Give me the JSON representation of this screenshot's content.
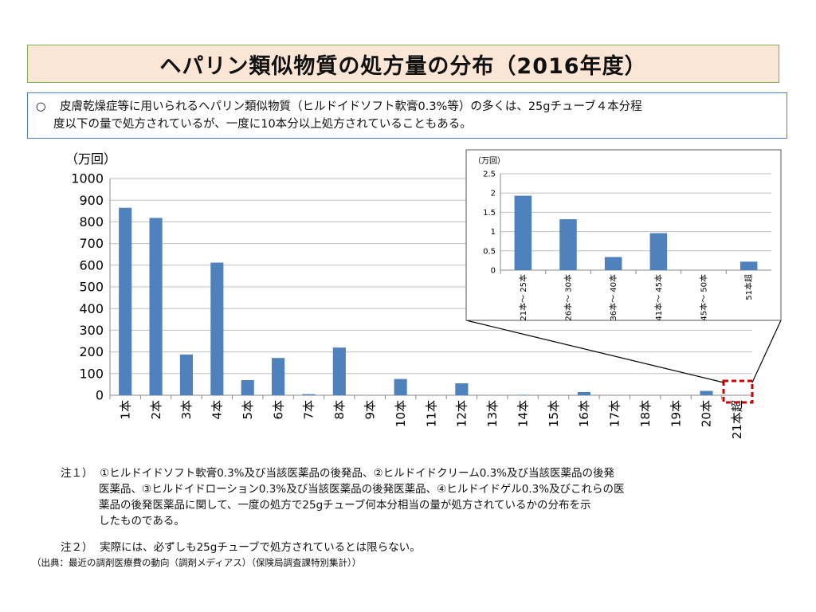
{
  "title": "ヘパリン類似物質の処方量の分布（2016年度）",
  "summary": {
    "bullet": "○",
    "line1": "皮膚乾燥症等に用いられるヘパリン類似物質（ヒルドイドソフト軟膏0.3%等）の多くは、25gチューブ４本分程",
    "line2": "度以下の量で処方されているが、一度に10本分以上処方されていることもある。"
  },
  "chart_data": [
    {
      "type": "bar",
      "unit_label": "（万回）",
      "categories": [
        "1本",
        "2本",
        "3本",
        "4本",
        "5本",
        "6本",
        "7本",
        "8本",
        "9本",
        "10本",
        "11本",
        "12本",
        "13本",
        "14本",
        "15本",
        "16本",
        "17本",
        "18本",
        "19本",
        "20本",
        "21本超"
      ],
      "values": [
        865,
        818,
        188,
        612,
        70,
        172,
        5,
        220,
        0,
        75,
        0,
        55,
        0,
        2,
        0,
        15,
        0,
        0,
        0,
        20,
        0
      ],
      "ylim": [
        0,
        1000
      ],
      "yticks": [
        "0",
        "100",
        "200",
        "300",
        "400",
        "500",
        "600",
        "700",
        "800",
        "900",
        "1000"
      ],
      "grid": true,
      "color": "#4f81bd"
    },
    {
      "type": "bar",
      "unit_label": "（万回）",
      "categories": [
        "21本～ 25本",
        "26本～ 30本",
        "36本～ 40本",
        "41本～ 45本",
        "45本～ 50本",
        "51本超"
      ],
      "values": [
        1.93,
        1.32,
        0.34,
        0.96,
        0,
        0.22
      ],
      "ylim": [
        0,
        2.5
      ],
      "yticks": [
        "0",
        "0.5",
        "1",
        "1.5",
        "2",
        "2.5"
      ],
      "grid": true,
      "color": "#4f81bd"
    }
  ],
  "notes": {
    "n1_label": "注１）",
    "n1_line1": "①ヒルドイドソフト軟膏0.3%及び当該医薬品の後発品、②ヒルドイドクリーム0.3%及び当該医薬品の後発",
    "n1_line2": "医薬品、③ヒルドイドローション0.3%及び当該医薬品の後発医薬品、④ヒルドイドゲル0.3%及びこれらの医",
    "n1_line3": "薬品の後発医薬品に関して、一度の処方で25gチューブ何本分相当の量が処方されているかの分布を示",
    "n1_line4": "したものである。",
    "n2_label": "注２）",
    "n2_text": "実際には、必ずしも25gチューブで処方されているとは限らない。"
  },
  "source": "（出典：最近の調剤医療費の動向（調剤メディアス）（保険局調査課特別集計））"
}
